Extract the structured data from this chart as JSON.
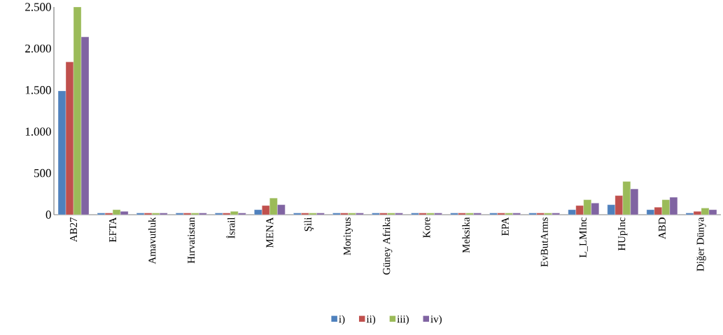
{
  "chart_data": {
    "type": "bar",
    "categories": [
      "AB27",
      "EFTA",
      "Amavutluk",
      "Hırvatistan",
      "İsrail",
      "MENA",
      "Şili",
      "Morityus",
      "Güney Afrika",
      "Kore",
      "Meksika",
      "EPA",
      "EvButArms",
      "L_LMInc",
      "HUpInc",
      "ABD",
      "Diğer Dünya"
    ],
    "series": [
      {
        "name": "i)",
        "color": "#4f81bd",
        "values": [
          1490,
          20,
          20,
          20,
          20,
          60,
          20,
          20,
          20,
          20,
          20,
          20,
          20,
          60,
          120,
          60,
          20
        ]
      },
      {
        "name": "ii)",
        "color": "#c0504d",
        "values": [
          1840,
          20,
          20,
          20,
          20,
          110,
          20,
          20,
          20,
          20,
          20,
          20,
          20,
          110,
          230,
          90,
          40
        ]
      },
      {
        "name": "iii)",
        "color": "#9bbb59",
        "values": [
          2500,
          60,
          20,
          20,
          40,
          200,
          20,
          20,
          20,
          20,
          20,
          20,
          20,
          180,
          400,
          180,
          80
        ]
      },
      {
        "name": "iv)",
        "color": "#8064a2",
        "values": [
          2140,
          40,
          20,
          20,
          20,
          120,
          20,
          20,
          20,
          20,
          20,
          20,
          20,
          140,
          310,
          210,
          60
        ]
      }
    ],
    "ylim": [
      0,
      2500
    ],
    "yticks": [
      0,
      500,
      {
        "value": 1000,
        "label": "1.000"
      },
      {
        "value": 1500,
        "label": "1.500"
      },
      {
        "value": 2000,
        "label": "2.000"
      },
      {
        "value": 2500,
        "label": "2.500"
      }
    ],
    "grid": false,
    "legend": "bottom"
  }
}
